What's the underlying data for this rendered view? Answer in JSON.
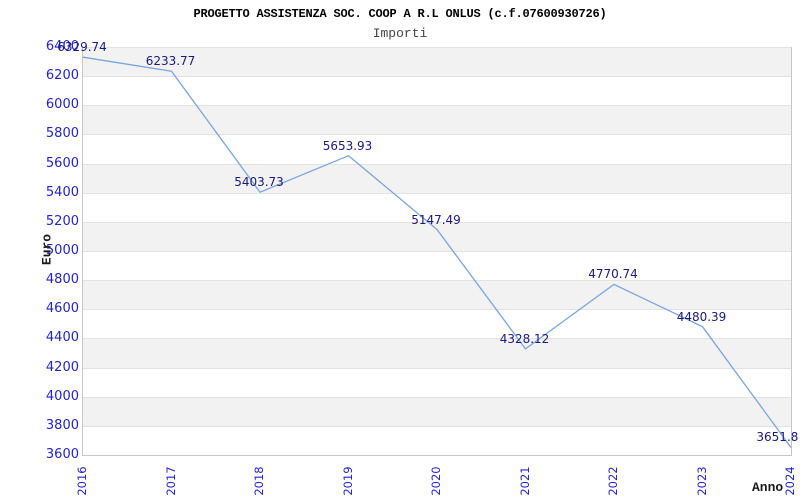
{
  "chart_data": {
    "type": "line",
    "title": "PROGETTO ASSISTENZA SOC. COOP A R.L ONLUS (c.f.07600930726)",
    "subtitle": "Importi",
    "xlabel": "Anno",
    "ylabel": "Euro",
    "x": [
      "2016",
      "2017",
      "2018",
      "2019",
      "2020",
      "2021",
      "2022",
      "2023",
      "2024"
    ],
    "values": [
      6329.74,
      6233.77,
      5403.73,
      5653.93,
      5147.49,
      4328.12,
      4770.74,
      4480.39,
      3651.8
    ],
    "point_labels": [
      "6329.74",
      "6233.77",
      "5403.73",
      "5653.93",
      "5147.49",
      "4328.12",
      "4770.74",
      "4480.39",
      "3651.8"
    ],
    "ylim": [
      3600,
      6400
    ],
    "y_ticks": [
      6400,
      6200,
      6000,
      5800,
      5600,
      5400,
      5200,
      5000,
      4800,
      4600,
      4400,
      4200,
      4000,
      3800,
      3600
    ],
    "grid": "horizontal-bands",
    "legend": "none",
    "colors": {
      "line": "#7aa5dc",
      "tick_label": "#2323cc",
      "point_label": "#1a1a7e",
      "band": "#f2f2f2",
      "gridline": "#e2e2e2",
      "plot_border": "#c6c6c6",
      "title": "#000000",
      "subtitle": "#444444"
    }
  }
}
